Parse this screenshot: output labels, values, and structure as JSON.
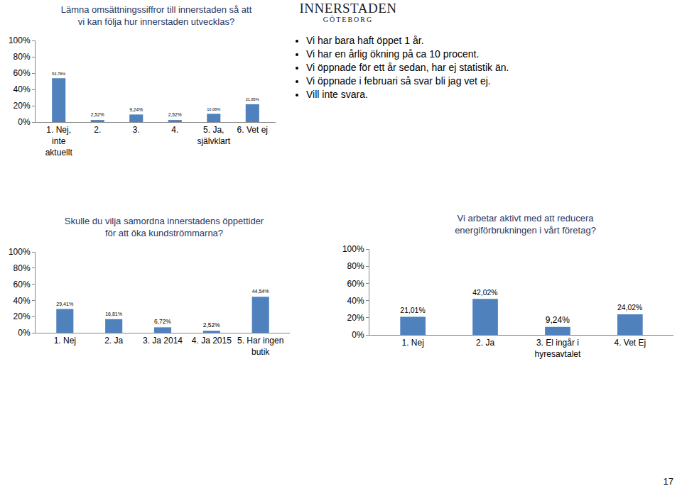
{
  "chart_data": [
    {
      "type": "bar",
      "title": "Lämna omsättningssiffror till innerstaden så att vi kan följa hur innerstaden utvecklas?",
      "categories": [
        "1. Nej, inte aktuellt",
        "2.",
        "3.",
        "4.",
        "5. Ja, självklart",
        "6. Vet ej"
      ],
      "values": [
        53.78,
        2.52,
        9.24,
        2.52,
        10.08,
        21.85
      ],
      "value_labels": [
        "53,78%",
        "2,52%",
        "9,24%",
        "2,52%",
        "10,08%",
        "21,85%"
      ],
      "color": "#4f81bd",
      "ylim": [
        0,
        100
      ],
      "yticks": [
        {
          "value": 0,
          "label": "0%"
        },
        {
          "value": 20,
          "label": "20%"
        },
        {
          "value": 40,
          "label": "40%"
        },
        {
          "value": 60,
          "label": "60%"
        },
        {
          "value": 80,
          "label": "80%"
        },
        {
          "value": 100,
          "label": "100%"
        }
      ],
      "grid": false,
      "data_labels": true
    },
    {
      "type": "bar",
      "title": "Skulle du vilja samordna innerstadens öppettider för att öka kundströmmarna?",
      "categories": [
        "1. Nej",
        "2. Ja",
        "3. Ja 2014",
        "4. Ja 2015",
        "5. Har ingen butik"
      ],
      "values": [
        29.41,
        16.81,
        6.72,
        2.52,
        44.54
      ],
      "value_labels": [
        "29,41%",
        "16,81%",
        "6,72%",
        "2,52%",
        "44,54%"
      ],
      "color": "#4f81bd",
      "ylim": [
        0,
        100
      ],
      "yticks": [
        {
          "value": 0,
          "label": "0%"
        },
        {
          "value": 20,
          "label": "20%"
        },
        {
          "value": 40,
          "label": "40%"
        },
        {
          "value": 60,
          "label": "60%"
        },
        {
          "value": 80,
          "label": "80%"
        },
        {
          "value": 100,
          "label": "100%"
        }
      ],
      "grid": false,
      "data_labels": true
    },
    {
      "type": "bar",
      "title": "Vi arbetar aktivt med att reducera energiförbrukningen i vårt företag?",
      "categories": [
        "1. Nej",
        "2. Ja",
        "3. El ingår i hyresavtalet",
        "4. Vet Ej"
      ],
      "values": [
        21.01,
        42.02,
        9.24,
        24.02
      ],
      "value_labels": [
        "21,01%",
        "42,02%",
        "9,24%",
        "24,02%"
      ],
      "color": "#4f81bd",
      "ylim": [
        0,
        100
      ],
      "yticks": [
        {
          "value": 0,
          "label": "0%"
        },
        {
          "value": 20,
          "label": "20%"
        },
        {
          "value": 40,
          "label": "40%"
        },
        {
          "value": 60,
          "label": "60%"
        },
        {
          "value": 80,
          "label": "80%"
        },
        {
          "value": 100,
          "label": "100%"
        }
      ],
      "grid": false,
      "data_labels": true
    }
  ],
  "text_box": {
    "logo": [
      "INNERSTADEN",
      "GÖTEBORG"
    ],
    "bullets": [
      "Vi har bara haft öppet 1 år.",
      "Vi har en årlig ökning på ca 10 procent.",
      "Vi öppnade för ett år sedan, har ej statistik än.",
      "Vi öppnade i februari så svar bli jag vet ej.",
      "Vill inte svara."
    ]
  },
  "page_number": 17
}
